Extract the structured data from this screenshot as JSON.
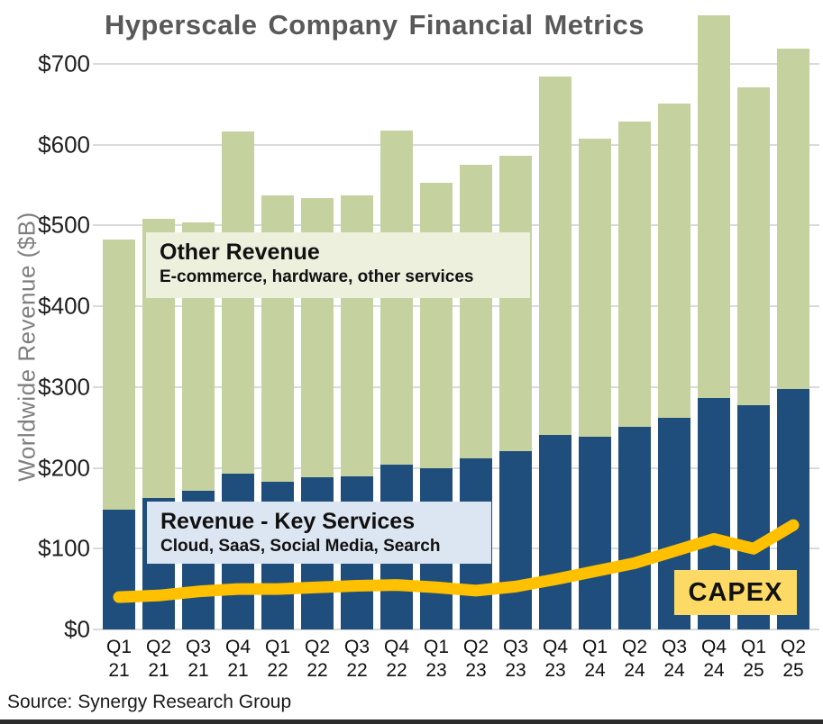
{
  "title": "Hyperscale Company Financial Metrics",
  "source": "Source: Synergy Research Group",
  "y_axis": {
    "title": "Worldwide Revenue ($B)",
    "tick_prefix": "$",
    "ticks": [
      0,
      100,
      200,
      300,
      400,
      500,
      600,
      700
    ]
  },
  "annotations": {
    "other_revenue": {
      "title": "Other Revenue",
      "subtitle": "E-commerce, hardware, other services"
    },
    "key_services": {
      "title": "Revenue - Key Services",
      "subtitle": "Cloud, SaaS, Social Media, Search"
    },
    "capex_label": "CAPEX"
  },
  "colors": {
    "bar_key_services": "#1f4e7c",
    "bar_other_revenue": "#c5d19e",
    "capex_line": "#ffc000",
    "capex_box_bg": "#fdd965",
    "other_box_bg": "#eef0de",
    "key_box_bg": "#dce6f2",
    "title_text": "#595959",
    "axis_title_text": "#7f7f7f",
    "grid": "#dadada"
  },
  "chart_data": {
    "type": "bar",
    "subtype": "stacked-bar-with-line",
    "title": "Hyperscale Company Financial Metrics",
    "xlabel": "",
    "ylabel": "Worldwide Revenue ($B)",
    "ylim": [
      0,
      770
    ],
    "grid": true,
    "categories": [
      "Q1 21",
      "Q2 21",
      "Q3 21",
      "Q4 21",
      "Q1 22",
      "Q2 22",
      "Q3 22",
      "Q4 22",
      "Q1 23",
      "Q2 23",
      "Q3 23",
      "Q4 23",
      "Q1 24",
      "Q2 24",
      "Q3 24",
      "Q4 24",
      "Q1 25",
      "Q2 25"
    ],
    "series": [
      {
        "name": "Revenue - Key Services",
        "type": "bar",
        "stack_position": "bottom",
        "color": "#1f4e7c",
        "values": [
          148,
          163,
          172,
          193,
          183,
          188,
          190,
          204,
          200,
          212,
          221,
          241,
          238,
          251,
          262,
          286,
          278,
          298
        ]
      },
      {
        "name": "Other Revenue",
        "type": "bar",
        "stack_position": "top",
        "color": "#c5d19e",
        "values": [
          335,
          345,
          332,
          423,
          354,
          346,
          347,
          413,
          353,
          363,
          365,
          443,
          369,
          378,
          389,
          474,
          393,
          421
        ]
      },
      {
        "name": "CAPEX",
        "type": "line",
        "color": "#ffc000",
        "values": [
          40,
          42,
          47,
          50,
          50,
          52,
          54,
          55,
          52,
          48,
          53,
          62,
          72,
          82,
          97,
          112,
          100,
          129
        ]
      }
    ],
    "stacked_totals": [
      483,
      508,
      504,
      616,
      537,
      534,
      537,
      617,
      553,
      575,
      586,
      684,
      607,
      629,
      651,
      760,
      671,
      719
    ]
  }
}
